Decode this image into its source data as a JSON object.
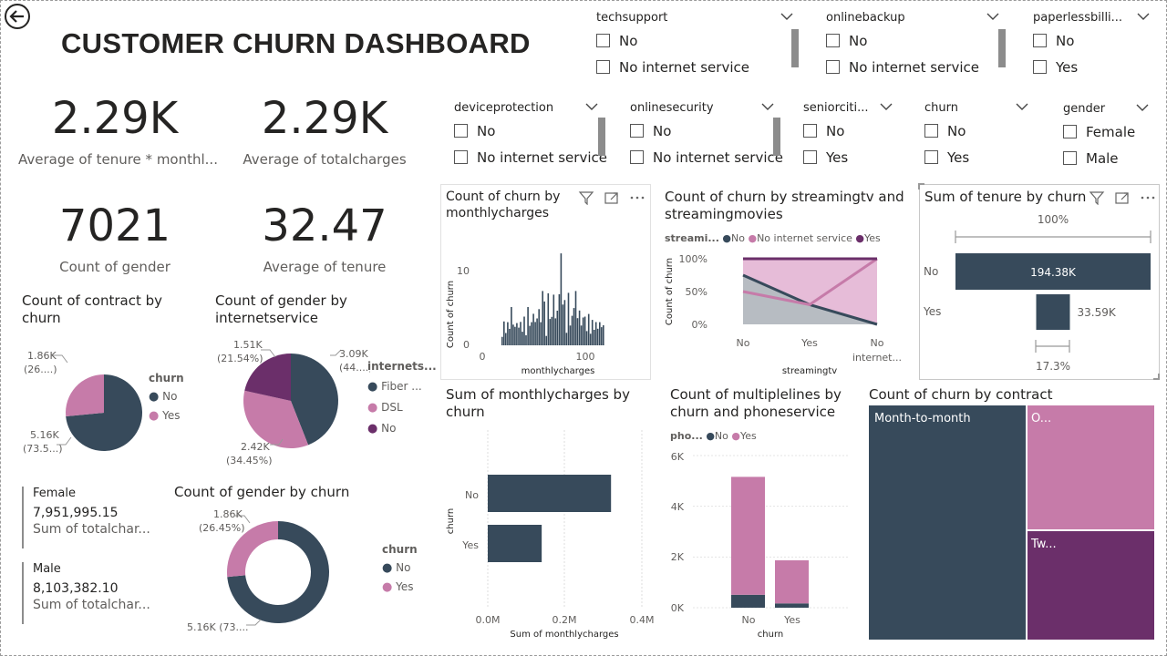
{
  "title": "CUSTOMER CHURN DASHBOARD",
  "colors": {
    "dark": "#374A5B",
    "pink": "#C67BA9",
    "purple": "#6B2F6A",
    "lightgray": "#B7BCC2",
    "lightpink": "#E6BCD8"
  },
  "slicers": {
    "techsupport": {
      "label": "techsupport",
      "options": [
        "No",
        "No internet service"
      ]
    },
    "onlinebackup": {
      "label": "onlinebackup",
      "options": [
        "No",
        "No internet service"
      ]
    },
    "paperless": {
      "label": "paperlessbilli...",
      "options": [
        "No",
        "Yes"
      ]
    },
    "deviceprotection": {
      "label": "deviceprotection",
      "options": [
        "No",
        "No internet service"
      ]
    },
    "onlinesecurity": {
      "label": "onlinesecurity",
      "options": [
        "No",
        "No internet service"
      ]
    },
    "senior": {
      "label": "seniorciti...",
      "options": [
        "No",
        "Yes"
      ]
    },
    "churn": {
      "label": "churn",
      "options": [
        "No",
        "Yes"
      ]
    },
    "gender": {
      "label": "gender",
      "options": [
        "Female",
        "Male"
      ]
    }
  },
  "cards": {
    "tenure_monthly": {
      "value": "2.29K",
      "label": "Average of tenure * monthl..."
    },
    "totalcharges": {
      "value": "2.29K",
      "label": "Average of totalcharges"
    },
    "count_gender": {
      "value": "7021",
      "label": "Count of gender"
    },
    "avg_tenure": {
      "value": "32.47",
      "label": "Average of tenure"
    }
  },
  "multirow": [
    {
      "name": "Female",
      "value": "7,951,995.15",
      "label": "Sum of totalchar..."
    },
    {
      "name": "Male",
      "value": "8,103,382.10",
      "label": "Sum of totalchar..."
    }
  ],
  "contract_pie": {
    "title": "Count of contract by churn",
    "legend_title": "churn",
    "legend": [
      "No",
      "Yes"
    ],
    "label_yes": "1.86K",
    "label_yes_pct": "(26....)",
    "label_no": "5.16K",
    "label_no_pct": "(73.5...)",
    "chart_data": {
      "type": "pie",
      "categories": [
        "No",
        "Yes"
      ],
      "values": [
        5160,
        1860
      ]
    }
  },
  "internet_pie": {
    "title": "Count of gender by internetservice",
    "legend_title": "internets...",
    "legend": [
      "Fiber ...",
      "DSL",
      "No"
    ],
    "label_fiber": "3.09K",
    "label_fiber_pct": "(44....)",
    "label_dsl": "2.42K",
    "label_dsl_pct": "(34.45%)",
    "label_no": "1.51K",
    "label_no_pct": "(21.54%)",
    "chart_data": {
      "type": "pie",
      "categories": [
        "Fiber optic",
        "DSL",
        "No"
      ],
      "values": [
        3090,
        2420,
        1510
      ]
    }
  },
  "gender_donut": {
    "title": "Count of gender by churn",
    "legend_title": "churn",
    "legend": [
      "No",
      "Yes"
    ],
    "label_yes": "1.86K",
    "label_yes_pct": "(26.45%)",
    "label_no": "5.16K (73....",
    "chart_data": {
      "type": "pie",
      "categories": [
        "No",
        "Yes"
      ],
      "values": [
        5160,
        1860
      ]
    }
  },
  "monthly_hist": {
    "title": "Count of churn by monthlycharges",
    "ylabel": "Count of churn",
    "xlabel": "monthlycharges",
    "yticks": [
      "0",
      "10"
    ],
    "xticks": [
      "0",
      "100"
    ],
    "chart_data": {
      "type": "bar",
      "xlabel": "monthlycharges",
      "ylabel": "Count of churn",
      "xlim": [
        0,
        130
      ],
      "ylim": [
        0,
        14
      ]
    }
  },
  "streaming": {
    "title": "Count of churn by streamingtv and streamingmovies",
    "legend_title": "streami...",
    "legend": [
      "No",
      "No internet service",
      "Yes"
    ],
    "ylabel": "Count of churn",
    "xlabel": "streamingtv",
    "yticks": [
      "100%",
      "50%",
      "0%"
    ],
    "xticks": [
      "No",
      "Yes",
      "No\ninternet..."
    ],
    "chart_data": {
      "type": "area",
      "categories": [
        "No",
        "Yes",
        "No internet service"
      ],
      "series": [
        {
          "name": "No",
          "values": [
            0.75,
            0.3,
            0.0
          ]
        },
        {
          "name": "No internet service",
          "values": [
            0.0,
            0.0,
            0.0
          ]
        },
        {
          "name": "Yes",
          "values": [
            0.25,
            0.7,
            1.0
          ]
        }
      ],
      "ylim": [
        0,
        1
      ]
    }
  },
  "tenure_funnel": {
    "title": "Sum of tenure by churn",
    "top_pct": "100%",
    "bottom_pct": "17.3%",
    "rows": [
      {
        "label": "No",
        "value": "194.38K"
      },
      {
        "label": "Yes",
        "value": "33.59K"
      }
    ],
    "chart_data": {
      "type": "bar",
      "categories": [
        "No",
        "Yes"
      ],
      "values": [
        194380,
        33590
      ]
    }
  },
  "monthly_bar": {
    "title": "Sum of monthlycharges by churn",
    "ylabel": "churn",
    "xlabel": "Sum of monthlycharges",
    "xticks": [
      "0.0M",
      "0.2M",
      "0.4M"
    ],
    "categories": [
      "No",
      "Yes"
    ],
    "chart_data": {
      "type": "bar",
      "orientation": "horizontal",
      "categories": [
        "No",
        "Yes"
      ],
      "values": [
        0.32,
        0.14
      ],
      "xlim": [
        0,
        0.4
      ],
      "unit": "M"
    }
  },
  "multilines": {
    "title": "Count of multiplelines by churn and phoneservice",
    "legend_title": "pho...",
    "legend": [
      "No",
      "Yes"
    ],
    "xlabel": "churn",
    "yticks": [
      "6K",
      "4K",
      "2K",
      "0K"
    ],
    "categories": [
      "No",
      "Yes"
    ],
    "chart_data": {
      "type": "bar",
      "stacked": true,
      "categories": [
        "No",
        "Yes"
      ],
      "series": [
        {
          "name": "No",
          "values": [
            510,
            170
          ]
        },
        {
          "name": "Yes",
          "values": [
            4650,
            1700
          ]
        }
      ],
      "ylim": [
        0,
        6000
      ]
    }
  },
  "treemap": {
    "title": "Count of churn by contract",
    "labels": [
      "Month-to-month",
      "O...",
      "Tw..."
    ],
    "chart_data": {
      "type": "treemap",
      "categories": [
        "Month-to-month",
        "One year",
        "Two year"
      ],
      "values": [
        3850,
        1470,
        1700
      ]
    }
  }
}
